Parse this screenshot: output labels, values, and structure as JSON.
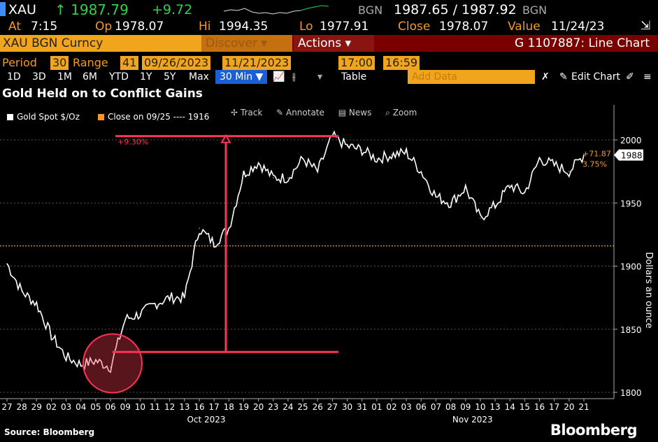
{
  "quote": {
    "ticker": "XAU",
    "last": "↑ 1987.79",
    "change": "+9.72",
    "source1": "BGN",
    "bid_ask": "1987.65 / 1987.92",
    "source2": "BGN"
  },
  "stats": {
    "at_label": "At",
    "at_value": "7:15",
    "op_label": "Op",
    "op_value": "1978.07",
    "hi_label": "Hi",
    "hi_value": "1994.35",
    "lo_label": "Lo",
    "lo_value": "1977.91",
    "close_label": "Close",
    "close_value": "1978.07",
    "value_label": "Value",
    "value_value": "11/24/23"
  },
  "toolbar": {
    "security": "XAU BGN Curncy",
    "discover": "Discover ▾",
    "actions": "Actions ▾",
    "function": "G 1107887: Line Chart"
  },
  "period": {
    "period_label": "Period",
    "period_value": "30",
    "range_label": "Range",
    "range_value": "41",
    "start_date": "09/26/2023",
    "end_date": "11/21/2023",
    "time_start": "17:00",
    "time_end": "16:59"
  },
  "controls": {
    "buttons": [
      "1D",
      "3D",
      "1M",
      "6M",
      "YTD",
      "1Y",
      "5Y",
      "Max"
    ],
    "interval": "30 Min ▼",
    "table": "Table",
    "add_data_placeholder": "Add Data",
    "edit_chart": "Edit Chart"
  },
  "chart_title": "Gold Held on to Conflict Gains",
  "legend": {
    "series": "Gold Spot $/Oz",
    "close_label": "Close on 09/25 ---- 1916"
  },
  "chart_tools": [
    "Track",
    "Annotate",
    "News",
    "Zoom"
  ],
  "colors": {
    "series": "#ffffff",
    "close_line": "#f39a1e",
    "annotation": "#ff3355"
  },
  "chart_data": {
    "type": "line",
    "ylabel": "Dollars an ounce",
    "ylim": [
      1795,
      2010
    ],
    "yticks": [
      "1800",
      "1850",
      "1900",
      "1950",
      "2000"
    ],
    "xticks": [
      "27",
      "28",
      "29",
      "02",
      "03",
      "04",
      "05",
      "06",
      "09",
      "10",
      "11",
      "12",
      "13",
      "16",
      "17",
      "18",
      "19",
      "20",
      "23",
      "24",
      "25",
      "26",
      "27",
      "30",
      "31",
      "01",
      "02",
      "03",
      "06",
      "07",
      "08",
      "09",
      "10",
      "13",
      "14",
      "15",
      "16",
      "17",
      "20",
      "21"
    ],
    "month_labels": [
      "Oct 2023",
      "Nov 2023"
    ],
    "reference_close": 1916,
    "last_value_label": "1988",
    "change_label": "+71.87",
    "change_pct_label": "3.75%",
    "annotation_pct": "+9.30%",
    "annotation_low": 1832,
    "annotation_high": 2003,
    "x": [
      0,
      1,
      2,
      3,
      4,
      5,
      6,
      7,
      8,
      9,
      10,
      11,
      12,
      13,
      14,
      15,
      16,
      17,
      18,
      19,
      20,
      21,
      22,
      23,
      24,
      25,
      26,
      27,
      28,
      29,
      30,
      31,
      32,
      33,
      34,
      35,
      36,
      37,
      38,
      39
    ],
    "values": [
      1902,
      1880,
      1870,
      1845,
      1828,
      1822,
      1825,
      1820,
      1858,
      1862,
      1870,
      1875,
      1875,
      1930,
      1918,
      1930,
      1973,
      1982,
      1970,
      1970,
      1985,
      1975,
      2003,
      1995,
      1992,
      1985,
      1988,
      1990,
      1975,
      1955,
      1950,
      1962,
      1938,
      1948,
      1964,
      1958,
      1985,
      1980,
      1975,
      1988
    ],
    "series": [
      {
        "name": "Gold Spot $/Oz",
        "values": [
          1902,
          1880,
          1870,
          1845,
          1828,
          1822,
          1825,
          1820,
          1858,
          1862,
          1870,
          1875,
          1875,
          1930,
          1918,
          1930,
          1973,
          1982,
          1970,
          1970,
          1985,
          1975,
          2003,
          1995,
          1992,
          1985,
          1988,
          1990,
          1975,
          1955,
          1950,
          1962,
          1938,
          1948,
          1964,
          1958,
          1985,
          1980,
          1975,
          1988
        ]
      }
    ]
  },
  "footer": {
    "source": "Source: Bloomberg",
    "brand": "Bloomberg"
  }
}
